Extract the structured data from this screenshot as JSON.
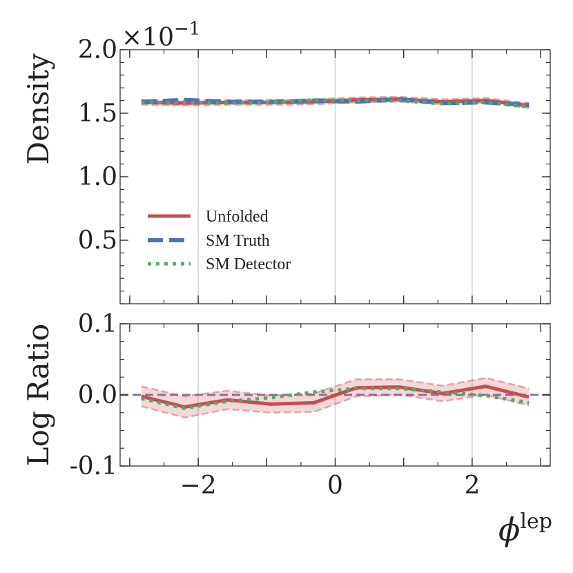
{
  "chart_data": [
    {
      "type": "line",
      "panel": "top",
      "ylabel": "Density",
      "y_multiplier_label": "×10",
      "y_multiplier_exponent": "−1",
      "ylim": [
        0.0,
        2.0
      ],
      "yticks": [
        0.5,
        1.0,
        1.5,
        2.0
      ],
      "ytick_labels": [
        "0.5",
        "1.0",
        "1.5",
        "2.0"
      ],
      "xlim": [
        -3.14,
        3.14
      ],
      "grid": "vertical",
      "legend_placement": "lower-left",
      "x": [
        -2.83,
        -2.2,
        -1.57,
        -0.94,
        -0.31,
        0.31,
        0.94,
        1.57,
        2.2,
        2.83
      ],
      "series": [
        {
          "name": "Unfolded",
          "style": "solid",
          "color": "#c44e52",
          "values": [
            1.585,
            1.58,
            1.585,
            1.585,
            1.59,
            1.605,
            1.61,
            1.59,
            1.6,
            1.56
          ],
          "band": [
            0.02,
            0.02,
            0.02,
            0.02,
            0.02,
            0.02,
            0.02,
            0.02,
            0.02,
            0.02
          ]
        },
        {
          "name": "SM Truth",
          "style": "dashed",
          "color": "#4c72b0",
          "values": [
            1.59,
            1.605,
            1.59,
            1.59,
            1.6,
            1.59,
            1.61,
            1.58,
            1.585,
            1.565
          ]
        },
        {
          "name": "SM Detector",
          "style": "dotted",
          "color": "#55a868",
          "values": [
            1.585,
            1.585,
            1.58,
            1.585,
            1.605,
            1.6,
            1.6,
            1.575,
            1.585,
            1.55
          ]
        }
      ]
    },
    {
      "type": "line",
      "panel": "bottom",
      "ylabel": "Log Ratio",
      "xlabel": "ϕ",
      "xlabel_superscript": "lep",
      "ylim": [
        -0.1,
        0.1
      ],
      "yticks": [
        -0.1,
        0.0,
        0.1
      ],
      "ytick_labels": [
        "-0.1",
        "0.0",
        "0.1"
      ],
      "xlim": [
        -3.14,
        3.14
      ],
      "xticks": [
        -2,
        0,
        2
      ],
      "xtick_labels": [
        "−2",
        "0",
        "2"
      ],
      "grid": "vertical",
      "reference_line": {
        "value": 0.0,
        "color": "#8172b2",
        "style": "dashed"
      },
      "x": [
        -2.83,
        -2.2,
        -1.57,
        -0.94,
        -0.31,
        0.31,
        0.94,
        1.57,
        2.2,
        2.83
      ],
      "series": [
        {
          "name": "Unfolded",
          "style": "solid",
          "color": "#c44e52",
          "values": [
            -0.002,
            -0.017,
            -0.007,
            -0.013,
            -0.011,
            0.01,
            0.011,
            0.002,
            0.012,
            -0.003
          ],
          "band": [
            0.014,
            0.015,
            0.013,
            0.012,
            0.013,
            0.012,
            0.011,
            0.011,
            0.012,
            0.012
          ]
        },
        {
          "name": "SM Detector",
          "style": "dotted",
          "color": "#55a868",
          "values": [
            -0.005,
            -0.019,
            -0.009,
            -0.004,
            0.004,
            0.009,
            0.009,
            0.004,
            -0.001,
            -0.011
          ]
        }
      ]
    }
  ]
}
